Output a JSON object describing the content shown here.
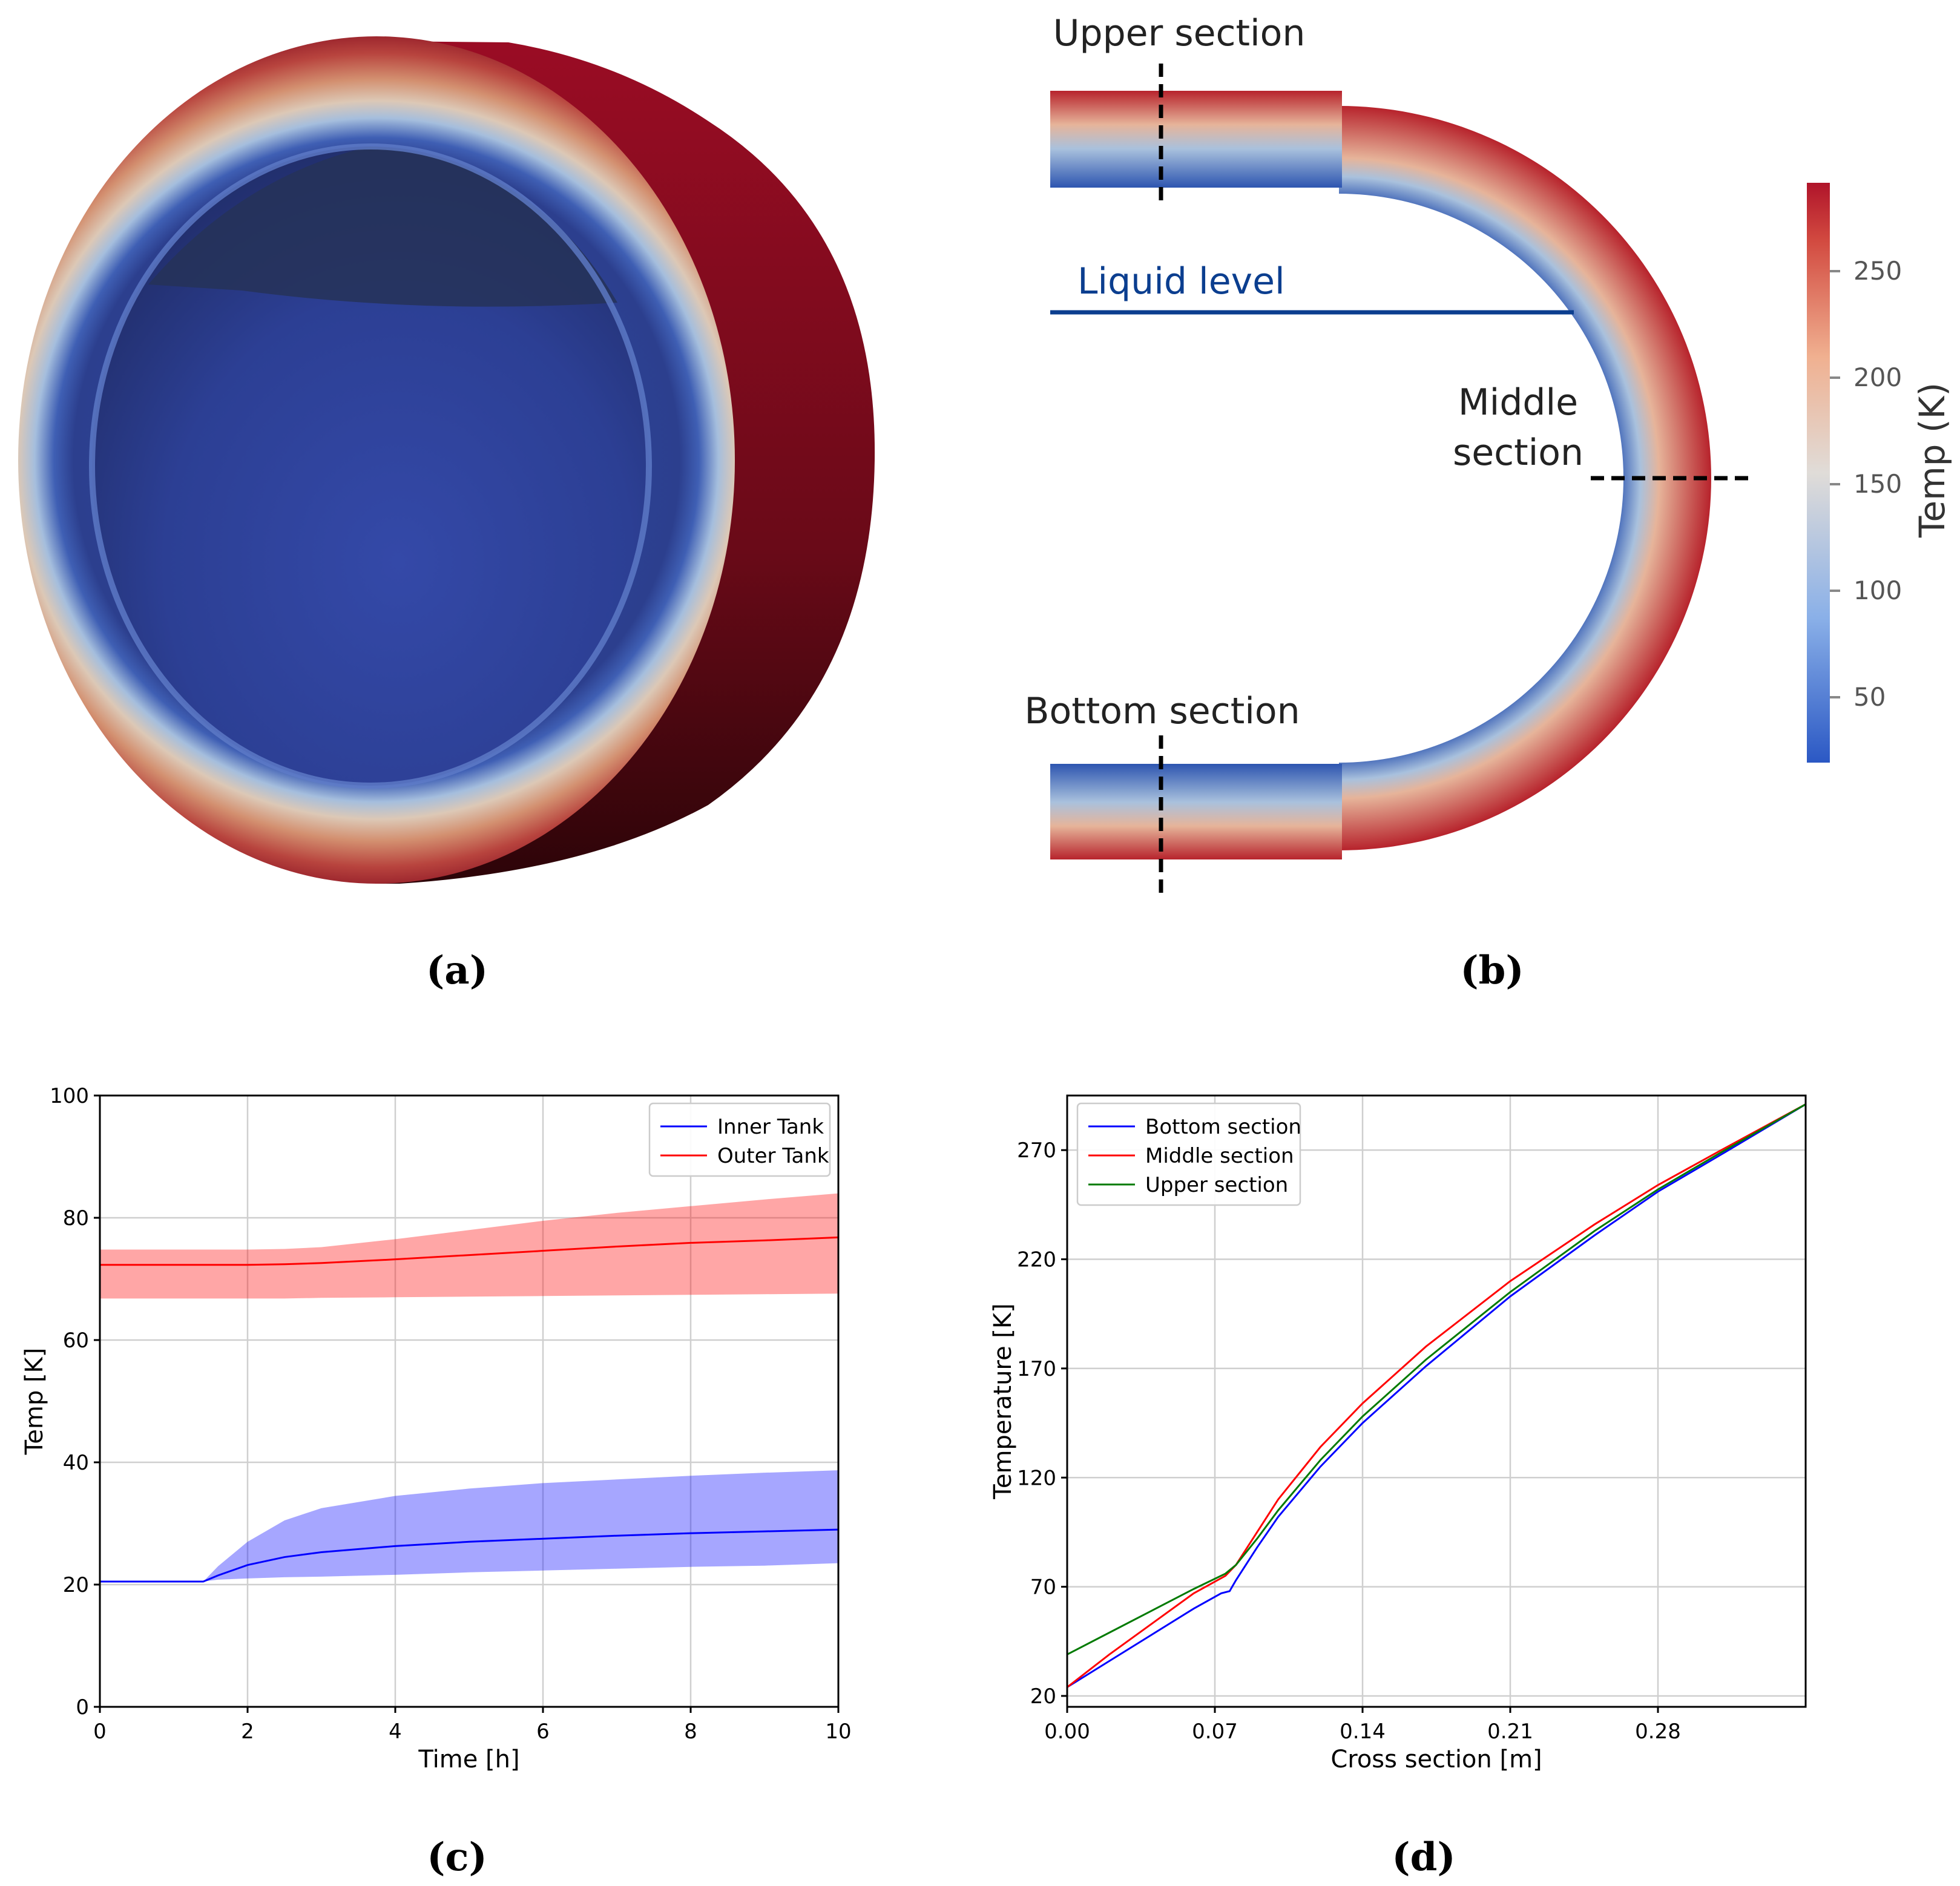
{
  "panels": {
    "a": {
      "label": "(a)"
    },
    "b": {
      "label": "(b)",
      "annotations": {
        "upper": "Upper section",
        "liquid": "Liquid level",
        "middle_line1": "Middle",
        "middle_line2": "section",
        "bottom": "Bottom section"
      },
      "colorbar": {
        "title": "Temp (K)",
        "ticks": [
          "250",
          "200",
          "150",
          "100",
          "50"
        ]
      }
    },
    "c": {
      "label": "(c)"
    },
    "d": {
      "label": "(d)"
    }
  },
  "colors": {
    "hot": "#8f0a22",
    "cold": "#2f47a8",
    "inner": "#0000ff",
    "outer": "#ff0000",
    "upper_line": "#007a00"
  },
  "chart_data": [
    {
      "id": "c",
      "type": "line",
      "title": "",
      "xlabel": "Time [h]",
      "ylabel": "Temp [K]",
      "xlim": [
        0,
        10
      ],
      "ylim": [
        0,
        100
      ],
      "xticks": [
        0,
        2,
        4,
        6,
        8,
        10
      ],
      "yticks": [
        0,
        20,
        40,
        60,
        80,
        100
      ],
      "grid": true,
      "legend": "top-right",
      "series": [
        {
          "name": "Inner Tank",
          "color": "#0000ff",
          "x": [
            0,
            1,
            1.4,
            1.6,
            2,
            2.5,
            3,
            4,
            5,
            6,
            7,
            8,
            9,
            10
          ],
          "mean": [
            20.5,
            20.5,
            20.5,
            21.5,
            23.2,
            24.5,
            25.3,
            26.3,
            27.0,
            27.5,
            28.0,
            28.4,
            28.7,
            29.0
          ],
          "upper": [
            20.5,
            20.5,
            20.5,
            23.0,
            27.0,
            30.5,
            32.5,
            34.5,
            35.7,
            36.6,
            37.2,
            37.8,
            38.3,
            38.7
          ],
          "lower": [
            20.5,
            20.5,
            20.5,
            20.8,
            21.0,
            21.2,
            21.3,
            21.6,
            22.0,
            22.3,
            22.6,
            22.9,
            23.1,
            23.5
          ]
        },
        {
          "name": "Outer Tank",
          "color": "#ff0000",
          "x": [
            0,
            1,
            2,
            2.5,
            3,
            4,
            5,
            6,
            7,
            8,
            9,
            10
          ],
          "mean": [
            72.3,
            72.3,
            72.3,
            72.4,
            72.6,
            73.2,
            73.9,
            74.6,
            75.3,
            75.9,
            76.3,
            76.8
          ],
          "upper": [
            74.8,
            74.8,
            74.8,
            74.9,
            75.2,
            76.5,
            78.0,
            79.5,
            80.8,
            81.9,
            83.0,
            84.0
          ],
          "lower": [
            66.8,
            66.8,
            66.8,
            66.8,
            66.9,
            67.0,
            67.1,
            67.2,
            67.3,
            67.4,
            67.5,
            67.6
          ]
        }
      ]
    },
    {
      "id": "d",
      "type": "line",
      "title": "",
      "xlabel": "Cross section [m]",
      "ylabel": "Temperature [K]",
      "xlim": [
        0,
        0.35
      ],
      "ylim": [
        15,
        295
      ],
      "xticks": [
        0.0,
        0.07,
        0.14,
        0.21,
        0.28
      ],
      "xtick_labels": [
        "0.00",
        "0.07",
        "0.14",
        "0.21",
        "0.28"
      ],
      "yticks": [
        20,
        70,
        120,
        170,
        220,
        270
      ],
      "grid": true,
      "legend": "top-left",
      "series": [
        {
          "name": "Bottom section",
          "color": "#0000ff",
          "x": [
            0,
            0.02,
            0.04,
            0.06,
            0.073,
            0.077,
            0.08,
            0.09,
            0.1,
            0.12,
            0.14,
            0.17,
            0.21,
            0.25,
            0.28,
            0.31,
            0.35
          ],
          "y": [
            24,
            36,
            48,
            60,
            67,
            68,
            73,
            88,
            102,
            125,
            145,
            171,
            203,
            231,
            251,
            268,
            291
          ]
        },
        {
          "name": "Middle section",
          "color": "#ff0000",
          "x": [
            0,
            0.02,
            0.04,
            0.06,
            0.075,
            0.08,
            0.09,
            0.1,
            0.12,
            0.14,
            0.17,
            0.21,
            0.25,
            0.28,
            0.31,
            0.35
          ],
          "y": [
            24,
            39,
            53,
            67,
            75,
            80,
            95,
            110,
            134,
            154,
            180,
            210,
            236,
            254,
            270,
            291
          ]
        },
        {
          "name": "Upper section",
          "color": "#007a00",
          "x": [
            0,
            0.02,
            0.04,
            0.06,
            0.075,
            0.08,
            0.09,
            0.1,
            0.12,
            0.14,
            0.17,
            0.21,
            0.25,
            0.28,
            0.31,
            0.35
          ],
          "y": [
            39,
            49,
            59,
            69,
            76,
            80,
            92,
            105,
            128,
            148,
            174,
            205,
            233,
            252,
            269,
            291
          ]
        }
      ]
    }
  ]
}
